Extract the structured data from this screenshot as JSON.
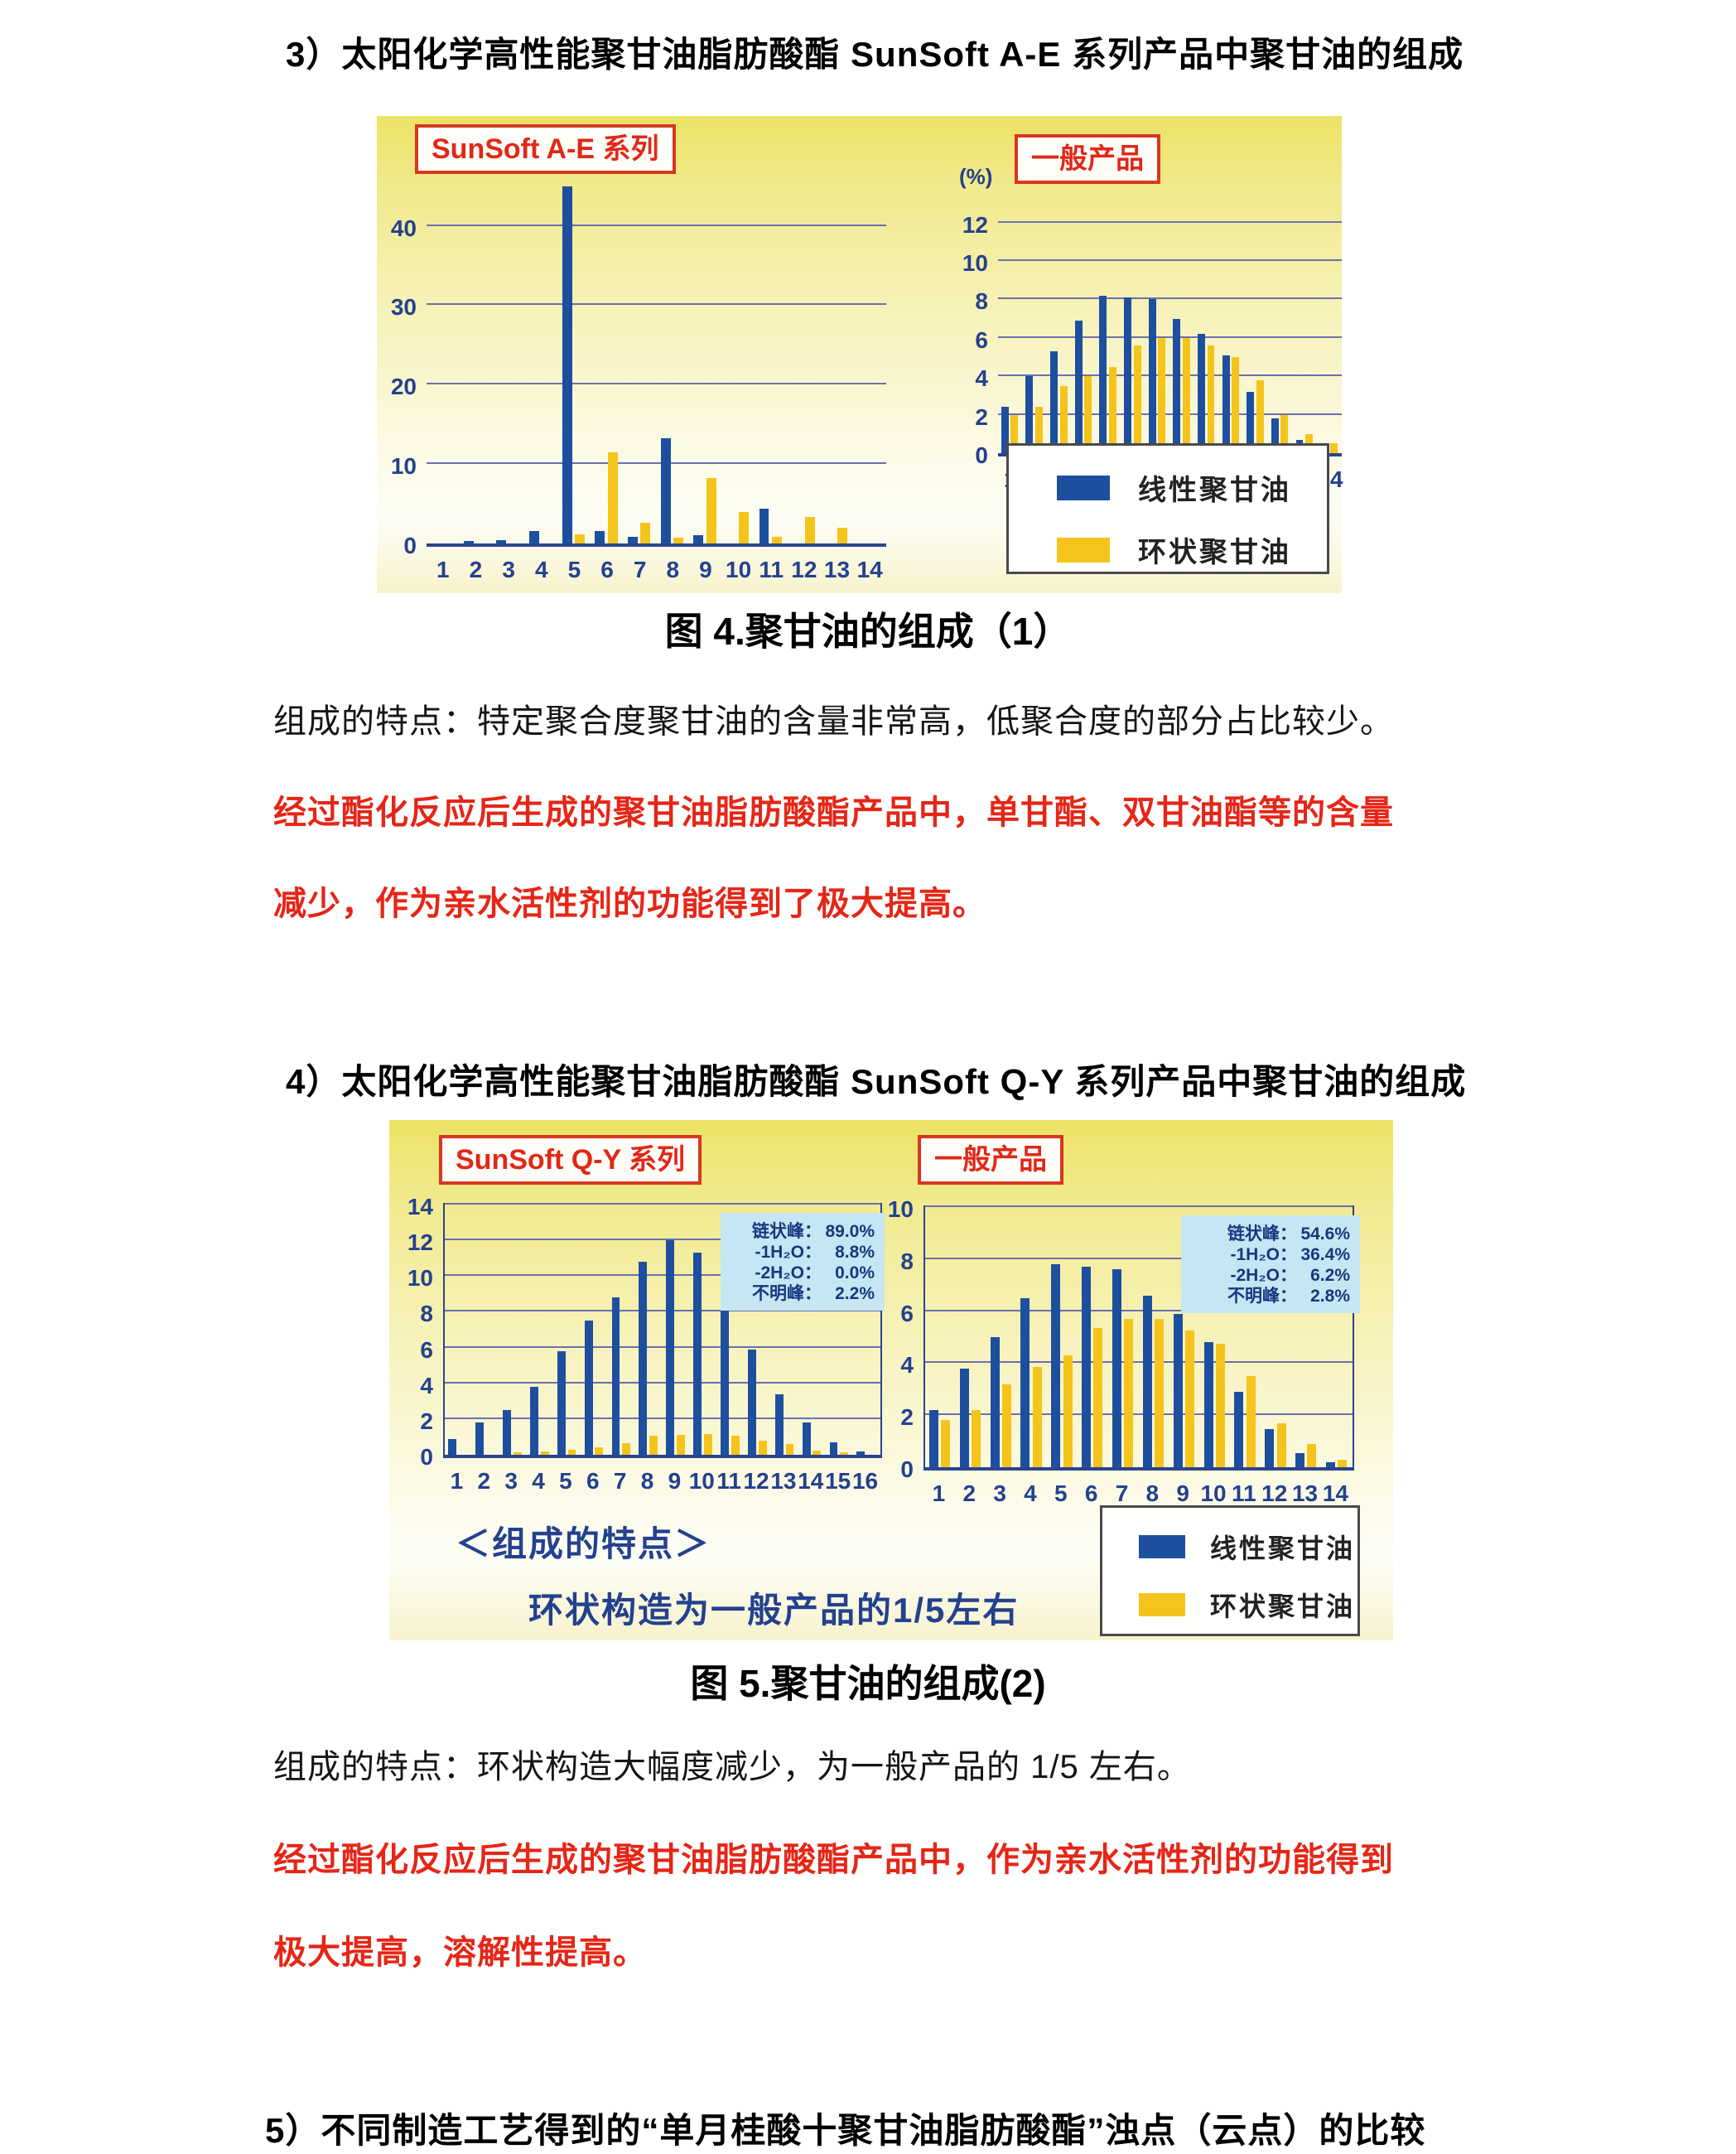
{
  "page": {
    "heading3": "3）太阳化学高性能聚甘油脂肪酸酯 SunSoft A-E 系列产品中聚甘油的组成",
    "heading4": "4）太阳化学高性能聚甘油脂肪酸酯 SunSoft Q-Y 系列产品中聚甘油的组成",
    "heading5": "5）不同制造工艺得到的“单月桂酸十聚甘油脂肪酸酯”浊点（云点）的比较",
    "fig4_caption": "图 4.聚甘油的组成（1）",
    "fig5_caption": "图 5.聚甘油的组成(2)",
    "para1": "组成的特点：特定聚合度聚甘油的含量非常高，低聚合度的部分占比较少。",
    "red1_line1": "经过酯化反应后生成的聚甘油脂肪酸酯产品中，单甘酯、双甘油酯等的含量",
    "red1_line2": "减少，作为亲水活性剂的功能得到了极大提高。",
    "para2": "组成的特点：环状构造大幅度减少，为一般产品的 1/5 左右。",
    "red2_line1": "经过酯化反应后生成的聚甘油脂肪酸酯产品中，作为亲水活性剂的功能得到",
    "red2_line2": "极大提高，溶解性提高。"
  },
  "legend": {
    "items": [
      {
        "label": "线性聚甘油",
        "color": "#1e4f9e"
      },
      {
        "label": "环状聚甘油",
        "color": "#f5c41c"
      }
    ]
  },
  "fig5_notes": {
    "note1": "＜组成的特点＞",
    "note2": "环状构造为一般产品的1/5左右"
  },
  "colors": {
    "bar_blue": "#1e4f9e",
    "bar_yellow": "#f5c41c",
    "grid": "#6b70ad",
    "axis_text": "#24418f",
    "red_text": "#e52617",
    "title_box_red": "#d8361f",
    "info_bg": "#c5e6f2",
    "info_text": "#17377f",
    "figure_bg_top": "#ece365",
    "figure_bg_bottom": "#f7f3cd"
  },
  "chart_data": [
    {
      "id": "fig4-left",
      "type": "bar",
      "title": "SunSoft A-E 系列",
      "categories": [
        "1",
        "2",
        "3",
        "4",
        "5",
        "6",
        "7",
        "8",
        "9",
        "10",
        "11",
        "12",
        "13",
        "14"
      ],
      "series": [
        {
          "name": "线性聚甘油",
          "color": "#1e4f9e",
          "values": [
            0,
            0.3,
            0.4,
            1.6,
            45.0,
            1.6,
            0.8,
            13.3,
            1.0,
            0,
            4.4,
            0,
            0,
            0
          ]
        },
        {
          "name": "环状聚甘油",
          "color": "#f5c41c",
          "values": [
            0,
            0,
            0,
            0,
            1.1,
            11.5,
            2.6,
            0.7,
            8.2,
            4.0,
            0.8,
            3.3,
            2.0,
            0
          ]
        }
      ],
      "ylim": [
        0,
        46
      ],
      "yticks": [
        0,
        10,
        20,
        30,
        40
      ],
      "grid": true,
      "legend_position": "none"
    },
    {
      "id": "fig4-right",
      "type": "bar",
      "title": "一般产品",
      "ylabel": "(%)",
      "categories": [
        "1",
        "2",
        "3",
        "4",
        "5",
        "6",
        "7",
        "8",
        "9",
        "10",
        "11",
        "12",
        "13",
        "14"
      ],
      "series": [
        {
          "name": "线性聚甘油",
          "color": "#1e4f9e",
          "values": [
            2.4,
            4.0,
            5.3,
            6.9,
            8.2,
            8.1,
            8.0,
            7.0,
            6.2,
            5.1,
            3.2,
            1.8,
            0.7,
            0.4
          ]
        },
        {
          "name": "环状聚甘油",
          "color": "#f5c41c",
          "values": [
            2.0,
            2.4,
            3.5,
            4.0,
            4.5,
            5.6,
            6.0,
            6.0,
            5.6,
            5.0,
            3.8,
            2.0,
            1.0,
            0.5
          ]
        }
      ],
      "ylim": [
        0,
        12.8
      ],
      "yticks": [
        0,
        2,
        4,
        6,
        8,
        10,
        12
      ],
      "grid": true,
      "legend_position": "below-right"
    },
    {
      "id": "fig5-left",
      "type": "bar",
      "title": "SunSoft Q-Y 系列",
      "categories": [
        "1",
        "2",
        "3",
        "4",
        "5",
        "6",
        "7",
        "8",
        "9",
        "10",
        "11",
        "12",
        "13",
        "14",
        "15",
        "16"
      ],
      "series": [
        {
          "name": "线性聚甘油",
          "color": "#1e4f9e",
          "values": [
            0.9,
            1.8,
            2.5,
            3.8,
            5.8,
            7.5,
            8.8,
            10.8,
            12.0,
            11.3,
            8.6,
            5.9,
            3.4,
            1.8,
            0.7,
            0.2
          ]
        },
        {
          "name": "环状聚甘油",
          "color": "#f5c41c",
          "values": [
            0,
            0,
            0.15,
            0.2,
            0.3,
            0.4,
            0.65,
            1.05,
            1.1,
            1.15,
            1.05,
            0.8,
            0.6,
            0.25,
            0.15,
            0
          ]
        }
      ],
      "ylim": [
        0,
        14
      ],
      "yticks": [
        0,
        2,
        4,
        6,
        8,
        10,
        12,
        14
      ],
      "grid": true,
      "info": [
        [
          "链状峰：",
          "89.0%"
        ],
        [
          "-1H₂O：",
          "8.8%"
        ],
        [
          "-2H₂O：",
          "0.0%"
        ],
        [
          "不明峰：",
          "2.2%"
        ]
      ],
      "legend_position": "none"
    },
    {
      "id": "fig5-right",
      "type": "bar",
      "title": "一般产品",
      "categories": [
        "1",
        "2",
        "3",
        "4",
        "5",
        "6",
        "7",
        "8",
        "9",
        "10",
        "11",
        "12",
        "13",
        "14"
      ],
      "series": [
        {
          "name": "线性聚甘油",
          "color": "#1e4f9e",
          "values": [
            2.2,
            3.8,
            5.0,
            6.5,
            7.8,
            7.7,
            7.6,
            6.6,
            5.9,
            4.8,
            2.9,
            1.45,
            0.55,
            0.2
          ]
        },
        {
          "name": "环状聚甘油",
          "color": "#f5c41c",
          "values": [
            1.8,
            2.2,
            3.2,
            3.85,
            4.3,
            5.35,
            5.7,
            5.7,
            5.25,
            4.75,
            3.5,
            1.7,
            0.9,
            0.3
          ]
        }
      ],
      "ylim": [
        0,
        10
      ],
      "yticks": [
        0,
        2,
        4,
        6,
        8,
        10
      ],
      "grid": true,
      "info": [
        [
          "链状峰：",
          "54.6%"
        ],
        [
          "-1H₂O：",
          "36.4%"
        ],
        [
          "-2H₂O：",
          "6.2%"
        ],
        [
          "不明峰：",
          "2.8%"
        ]
      ],
      "legend_position": "below-right"
    }
  ]
}
